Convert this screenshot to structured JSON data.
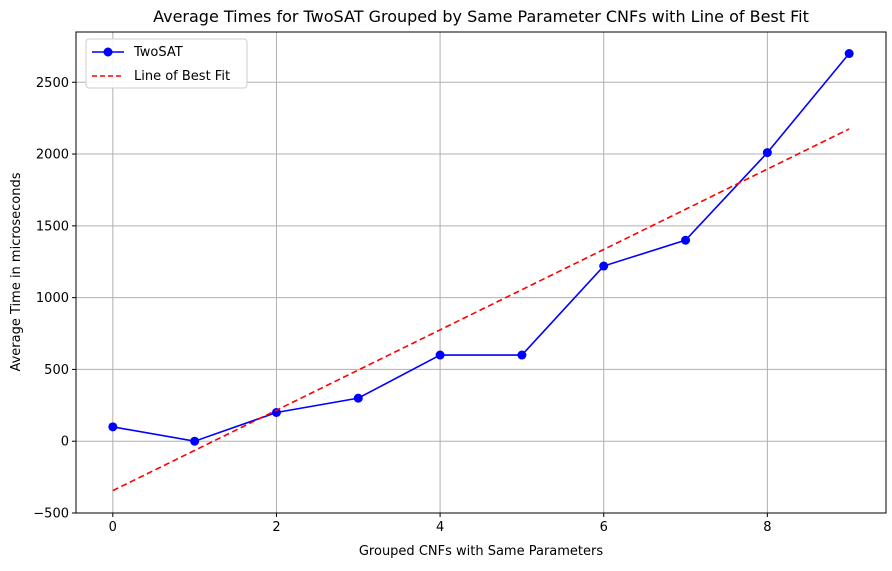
{
  "chart_data": {
    "type": "line",
    "title": "Average Times for TwoSAT Grouped by Same Parameter CNFs with Line of Best Fit",
    "xlabel": "Grouped CNFs with Same Parameters",
    "ylabel": "Average Time in microseconds",
    "xlim": [
      -0.45,
      9.45
    ],
    "ylim": [
      -500,
      2850
    ],
    "x_ticks": [
      0,
      2,
      4,
      6,
      8
    ],
    "y_ticks": [
      -500,
      0,
      500,
      1000,
      1500,
      2000,
      2500
    ],
    "x_tick_labels": [
      "0",
      "2",
      "4",
      "6",
      "8"
    ],
    "y_tick_labels": [
      "−500",
      "0",
      "500",
      "1000",
      "1500",
      "2000",
      "2500"
    ],
    "grid": true,
    "legend_position": "top-left",
    "series": [
      {
        "name": "TwoSAT",
        "kind": "line-markers",
        "color": "#0000ff",
        "x": [
          0,
          1,
          2,
          3,
          4,
          5,
          6,
          7,
          8,
          9
        ],
        "y": [
          100,
          0,
          200,
          300,
          600,
          600,
          1220,
          1400,
          2010,
          2700
        ]
      },
      {
        "name": "Line of Best Fit",
        "kind": "dashed-line",
        "color": "#ff0000",
        "x": [
          0,
          9
        ],
        "y": [
          -344,
          2175
        ]
      }
    ]
  }
}
